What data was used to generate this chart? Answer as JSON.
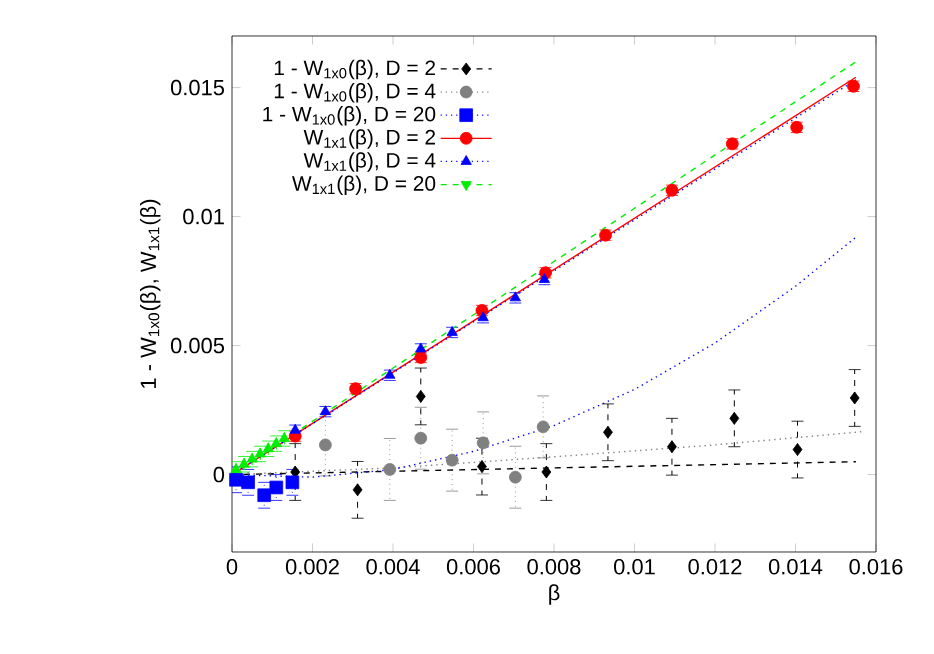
{
  "chart_data": {
    "type": "scatter",
    "xlabel": "β",
    "ylabel": "1 - W$_{1x0}$(β), W$_{1x1}$(β)",
    "xlim": [
      0,
      0.016
    ],
    "ylim": [
      -0.003,
      0.017
    ],
    "xticks": [
      0,
      0.002,
      0.004,
      0.006,
      0.008,
      0.01,
      0.012,
      0.014,
      0.016
    ],
    "yticks": [
      0,
      0.005,
      0.01,
      0.015
    ],
    "legend": "top left",
    "series": [
      {
        "name": "1 - W$_{1x0}$(β), D = 2",
        "color": "#000000",
        "marker": "diamond",
        "line_style": "dashed",
        "x": [
          0.00157,
          0.00312,
          0.00469,
          0.00621,
          0.00781,
          0.00934,
          0.01093,
          0.01248,
          0.01405,
          0.01547
        ],
        "values": [
          0.0001,
          -0.00059,
          0.00303,
          0.00031,
          0.0001,
          0.00164,
          0.00108,
          0.00218,
          0.00097,
          0.00297
        ],
        "errors": [
          0.0011,
          0.0011,
          0.0011,
          0.0011,
          0.0011,
          0.0011,
          0.0011,
          0.0011,
          0.0011,
          0.0011
        ]
      },
      {
        "name": "1 - W$_{1x0}$(β), D = 4",
        "color": "#808080",
        "marker": "circle",
        "line_style": "dotted",
        "x": [
          0.00232,
          0.00392,
          0.00469,
          0.00547,
          0.00624,
          0.00704,
          0.00773
        ],
        "values": [
          0.00115,
          0.0002,
          0.00141,
          0.00056,
          0.00123,
          -0.0001,
          0.00185
        ],
        "errors": [
          0.0012,
          0.0012,
          0.0012,
          0.0012,
          0.0012,
          0.0012,
          0.0012
        ]
      },
      {
        "name": "1 - W$_{1x0}$(β), D = 20",
        "color": "#0000ff",
        "marker": "square",
        "line_style": "dotted",
        "x": [
          0.0001,
          0.0004,
          0.0008,
          0.0011,
          0.0015
        ],
        "values": [
          -0.0002,
          -0.0003,
          -0.0008,
          -0.0005,
          -0.0003
        ],
        "errors": [
          0.0005,
          0.0005,
          0.0005,
          0.0005,
          0.0005
        ]
      },
      {
        "name": "W$_{1x1}$(β), D = 2",
        "color": "#ff0000",
        "marker": "circle",
        "line_style": "solid",
        "x": [
          0.00157,
          0.00307,
          0.00469,
          0.00621,
          0.00779,
          0.00928,
          0.01093,
          0.01243,
          0.01403,
          0.01544
        ],
        "values": [
          0.00149,
          0.00333,
          0.00454,
          0.00636,
          0.00782,
          0.00928,
          0.01102,
          0.01282,
          0.01346,
          0.01505
        ],
        "errors": [
          0.0002,
          0.0002,
          0.0002,
          0.0002,
          0.0002,
          0.0002,
          0.0002,
          0.0002,
          0.0002,
          0.0002
        ]
      },
      {
        "name": "W$_{1x1}$(β), D = 4",
        "color": "#0000ff",
        "marker": "triangle",
        "line_style": "dotted",
        "x": [
          0.00157,
          0.00232,
          0.00392,
          0.00469,
          0.00547,
          0.00624,
          0.00704,
          0.00776
        ],
        "values": [
          0.00172,
          0.00244,
          0.00385,
          0.00487,
          0.00551,
          0.00608,
          0.00685,
          0.00756
        ],
        "errors": [
          0.0002,
          0.0002,
          0.0002,
          0.0002,
          0.0002,
          0.0002,
          0.0002,
          0.0002
        ]
      },
      {
        "name": "W$_{1x1}$(β), D = 20",
        "color": "#00ee00",
        "marker": "triangle down",
        "line_style": "dashed",
        "x": [
          0.0001,
          0.0003,
          0.0005,
          0.0007,
          0.0009,
          0.0011,
          0.0013
        ],
        "values": [
          0.0002,
          0.0004,
          0.0006,
          0.0008,
          0.001,
          0.0012,
          0.0014
        ],
        "errors": [
          0.0003,
          0.0003,
          0.0003,
          0.0003,
          0.0003,
          0.0003,
          0.0003
        ]
      },
      {
        "type": "line",
        "color": "#000000",
        "line_style": "dashed",
        "x": [
          0,
          0.0155
        ],
        "values": [
          0,
          0.0005
        ]
      },
      {
        "type": "line",
        "color": "#808080",
        "line_style": "dotted",
        "x": [
          0,
          0.004,
          0.008,
          0.012,
          0.0157
        ],
        "values": [
          0,
          0.00026,
          0.00069,
          0.00115,
          0.00167
        ]
      },
      {
        "type": "line",
        "color": "#0000ff",
        "line_style": "dotted",
        "x": [
          0,
          0.002,
          0.004,
          0.006,
          0.008,
          0.01,
          0.012,
          0.014,
          0.0155
        ],
        "values": [
          0,
          -0.0001,
          0.0002,
          0.0009,
          0.0019,
          0.0033,
          0.0051,
          0.0073,
          0.0092
        ]
      },
      {
        "type": "line",
        "color": "#ff0000",
        "line_style": "solid",
        "x": [
          0,
          0.0155
        ],
        "values": [
          0,
          0.0154
        ]
      },
      {
        "type": "line",
        "color": "#0000ff",
        "line_style": "dotted",
        "x": [
          0,
          0.0155
        ],
        "values": [
          0,
          0.0153
        ]
      },
      {
        "type": "line",
        "color": "#00ee00",
        "line_style": "dashed",
        "x": [
          0,
          0.0155
        ],
        "values": [
          0,
          0.016
        ]
      }
    ]
  }
}
